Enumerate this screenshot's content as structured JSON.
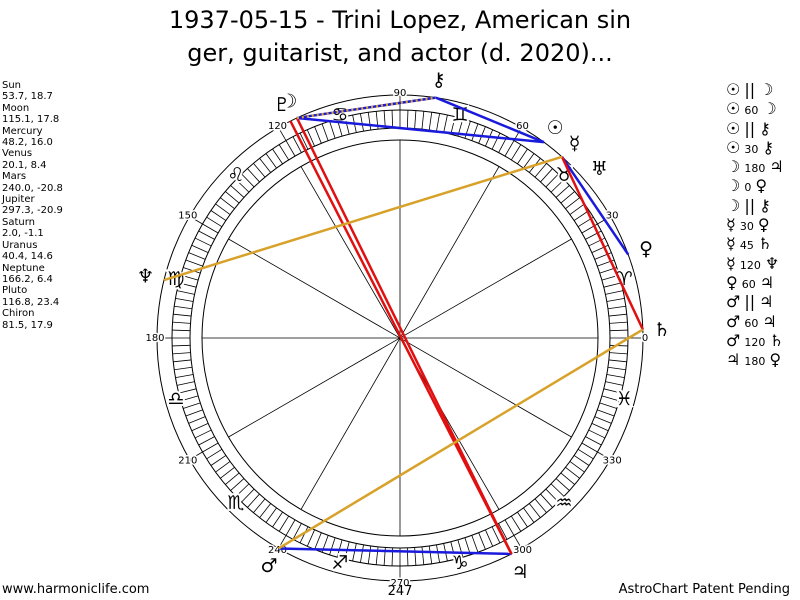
{
  "title": "1937-05-15 - Trini Lopez, American sin\nger, guitarist, and actor (d. 2020)...",
  "footer_left": "www.harmoniclife.com",
  "footer_right": "AstroChart Patent Pending",
  "planet_list": [
    {
      "name": "Sun",
      "values": "53.7, 18.7"
    },
    {
      "name": "Moon",
      "values": "115.1, 17.8"
    },
    {
      "name": "Mercury",
      "values": "48.2, 16.0"
    },
    {
      "name": "Venus",
      "values": "20.1, 8.4"
    },
    {
      "name": "Mars",
      "values": "240.0, -20.8"
    },
    {
      "name": "Jupiter",
      "values": "297.3, -20.9"
    },
    {
      "name": "Saturn",
      "values": "2.0, -1.1"
    },
    {
      "name": "Uranus",
      "values": "40.4, 14.6"
    },
    {
      "name": "Neptune",
      "values": "166.2, 6.4"
    },
    {
      "name": "Pluto",
      "values": "116.8, 23.4"
    },
    {
      "name": "Chiron",
      "values": "81.5, 17.9"
    }
  ],
  "aspect_list": [
    {
      "p1": "☉",
      "aspect": "||",
      "p2": "☽"
    },
    {
      "p1": "☉",
      "aspect": "60",
      "p2": "☽"
    },
    {
      "p1": "☉",
      "aspect": "||",
      "p2": "⚷"
    },
    {
      "p1": "☉",
      "aspect": "30",
      "p2": "⚷"
    },
    {
      "p1": "☽",
      "aspect": "180",
      "p2": "♃"
    },
    {
      "p1": "☽",
      "aspect": "0",
      "p2": "♀"
    },
    {
      "p1": "☽",
      "aspect": "||",
      "p2": "⚷"
    },
    {
      "p1": "☿",
      "aspect": "30",
      "p2": "♀"
    },
    {
      "p1": "☿",
      "aspect": "45",
      "p2": "♄"
    },
    {
      "p1": "☿",
      "aspect": "120",
      "p2": "♆"
    },
    {
      "p1": "♀",
      "aspect": "60",
      "p2": "♃"
    },
    {
      "p1": "♂",
      "aspect": "||",
      "p2": "♃"
    },
    {
      "p1": "♂",
      "aspect": "60",
      "p2": "♃"
    },
    {
      "p1": "♂",
      "aspect": "120",
      "p2": "♄"
    },
    {
      "p1": "♃",
      "aspect": "180",
      "p2": "♀"
    }
  ],
  "chart_data": {
    "type": "polar",
    "degree_labels": [
      "0",
      "30",
      "60",
      "90",
      "120",
      "150",
      "180",
      "210",
      "240",
      "270",
      "300",
      "330"
    ],
    "extra_label": "247",
    "signs": [
      "♈",
      "♉",
      "♊",
      "♋",
      "♌",
      "♍",
      "♎",
      "♏",
      "♐",
      "♑",
      "♒",
      "♓"
    ],
    "planets": [
      {
        "name": "Sun",
        "glyph": "☉",
        "longitude": 53.7,
        "latitude": 18.7
      },
      {
        "name": "Moon",
        "glyph": "☽",
        "longitude": 115.1,
        "latitude": 17.8
      },
      {
        "name": "Mercury",
        "glyph": "☿",
        "longitude": 48.2,
        "latitude": 16.0
      },
      {
        "name": "Venus",
        "glyph": "♀",
        "longitude": 20.1,
        "latitude": 8.4
      },
      {
        "name": "Mars",
        "glyph": "♂",
        "longitude": 240.0,
        "latitude": -20.8
      },
      {
        "name": "Jupiter",
        "glyph": "♃",
        "longitude": 297.3,
        "latitude": -20.9
      },
      {
        "name": "Saturn",
        "glyph": "♄",
        "longitude": 2.0,
        "latitude": -1.1
      },
      {
        "name": "Uranus",
        "glyph": "♅",
        "longitude": 40.4,
        "latitude": 14.6
      },
      {
        "name": "Neptune",
        "glyph": "♆",
        "longitude": 166.2,
        "latitude": 6.4
      },
      {
        "name": "Pluto",
        "glyph": "♇",
        "longitude": 116.8,
        "latitude": 23.4
      },
      {
        "name": "Chiron",
        "glyph": "⚷",
        "longitude": 81.5,
        "latitude": 17.9
      }
    ],
    "aspect_lines": [
      {
        "from": "Sun",
        "to": "Moon",
        "color": "#1a1adc"
      },
      {
        "from": "Sun",
        "to": "Chiron",
        "color": "#1a1adc"
      },
      {
        "from": "Moon",
        "to": "Chiron",
        "color": "#1a1adc"
      },
      {
        "from": "Mercury",
        "to": "Venus",
        "color": "#1a1adc"
      },
      {
        "from": "Mars",
        "to": "Jupiter",
        "color": "#1a1adc"
      },
      {
        "from": "Moon",
        "to": "Jupiter",
        "color": "#e01010"
      },
      {
        "from": "Pluto",
        "to": "Jupiter",
        "color": "#e01010"
      },
      {
        "from": "Mercury",
        "to": "Saturn",
        "color": "#e01010"
      },
      {
        "from": "Mercury",
        "to": "Neptune",
        "color": "#d8a22a"
      },
      {
        "from": "Mars",
        "to": "Saturn",
        "color": "#d8a22a"
      },
      {
        "from": "Moon",
        "to": "Chiron",
        "color": "#d8a22a",
        "dotted": true
      }
    ]
  }
}
